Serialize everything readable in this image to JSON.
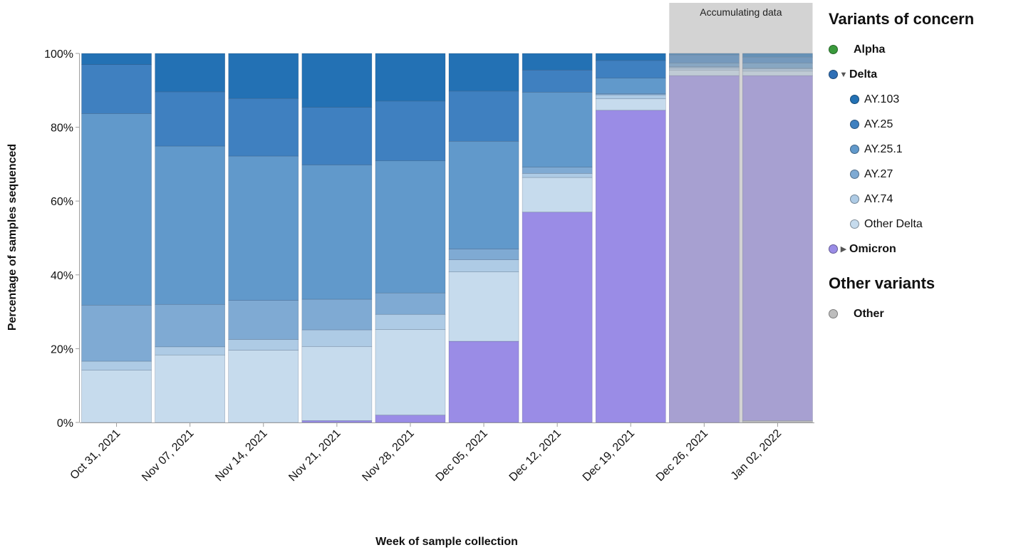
{
  "chart_data": {
    "type": "bar",
    "stacked": true,
    "xlabel": "Week of sample collection",
    "ylabel": "Percentage of samples sequenced",
    "ylim": [
      0,
      100
    ],
    "y_ticks": [
      "0%",
      "20%",
      "40%",
      "60%",
      "80%",
      "100%"
    ],
    "categories": [
      "Oct 31, 2021",
      "Nov 07, 2021",
      "Nov 14, 2021",
      "Nov 21, 2021",
      "Nov 28, 2021",
      "Dec 05, 2021",
      "Dec 12, 2021",
      "Dec 19, 2021",
      "Dec 26, 2021",
      "Jan 02, 2022"
    ],
    "accumulating_label": "Accumulating data",
    "accumulating_categories": [
      "Dec 26, 2021",
      "Jan 02, 2022"
    ],
    "series": [
      {
        "name": "Other",
        "color": "#bdbdbd",
        "values": [
          0,
          0,
          0,
          0,
          0,
          0,
          0,
          0,
          0,
          0.5
        ]
      },
      {
        "name": "Omicron",
        "color": "#9a8ce6",
        "values": [
          0,
          0,
          0,
          0.5,
          2,
          22,
          57,
          84.6,
          94,
          93.5
        ]
      },
      {
        "name": "Other Delta",
        "color": "#c6dbed",
        "values": [
          14.2,
          18.3,
          19.6,
          20.1,
          23.2,
          18.8,
          9.4,
          3.1,
          1.5,
          1.2
        ]
      },
      {
        "name": "AY.74",
        "color": "#aecbe5",
        "values": [
          2.4,
          2.2,
          2.9,
          4.5,
          4.1,
          3.3,
          1.1,
          1.1,
          0.6,
          0.6
        ]
      },
      {
        "name": "AY.27",
        "color": "#7faad3",
        "values": [
          15.2,
          11.5,
          10.6,
          8.3,
          5.8,
          2.9,
          1.7,
          0.3,
          0.3,
          0.3
        ]
      },
      {
        "name": "AY.25.1",
        "color": "#6199cb",
        "values": [
          51.9,
          42.9,
          39.1,
          36.4,
          35.8,
          29.2,
          20.3,
          4.2,
          1,
          1.3
        ]
      },
      {
        "name": "AY.25",
        "color": "#3f80c0",
        "values": [
          13.3,
          14.7,
          15.6,
          15.6,
          16.2,
          13.6,
          6,
          4.8,
          2.2,
          1.6
        ]
      },
      {
        "name": "AY.103",
        "color": "#2371b4",
        "values": [
          3,
          10.4,
          12.2,
          14.6,
          12.9,
          10.2,
          4.5,
          1.9,
          0.4,
          1
        ]
      }
    ]
  },
  "legend": {
    "heading_voc": "Variants of concern",
    "heading_other": "Other variants",
    "alpha": {
      "label": "Alpha",
      "color": "#3a9a3c"
    },
    "delta": {
      "label": "Delta",
      "color": "#2e6fb6",
      "caret": "▼"
    },
    "delta_children": [
      {
        "label": "AY.103",
        "color": "#2371b4"
      },
      {
        "label": "AY.25",
        "color": "#3f80c0"
      },
      {
        "label": "AY.25.1",
        "color": "#6199cb"
      },
      {
        "label": "AY.27",
        "color": "#7faad3"
      },
      {
        "label": "AY.74",
        "color": "#aecbe5"
      },
      {
        "label": "Other Delta",
        "color": "#c6dbed"
      }
    ],
    "omicron": {
      "label": "Omicron",
      "color": "#9a8ce6",
      "caret": "▶"
    },
    "other": {
      "label": "Other",
      "color": "#bdbdbd"
    }
  }
}
